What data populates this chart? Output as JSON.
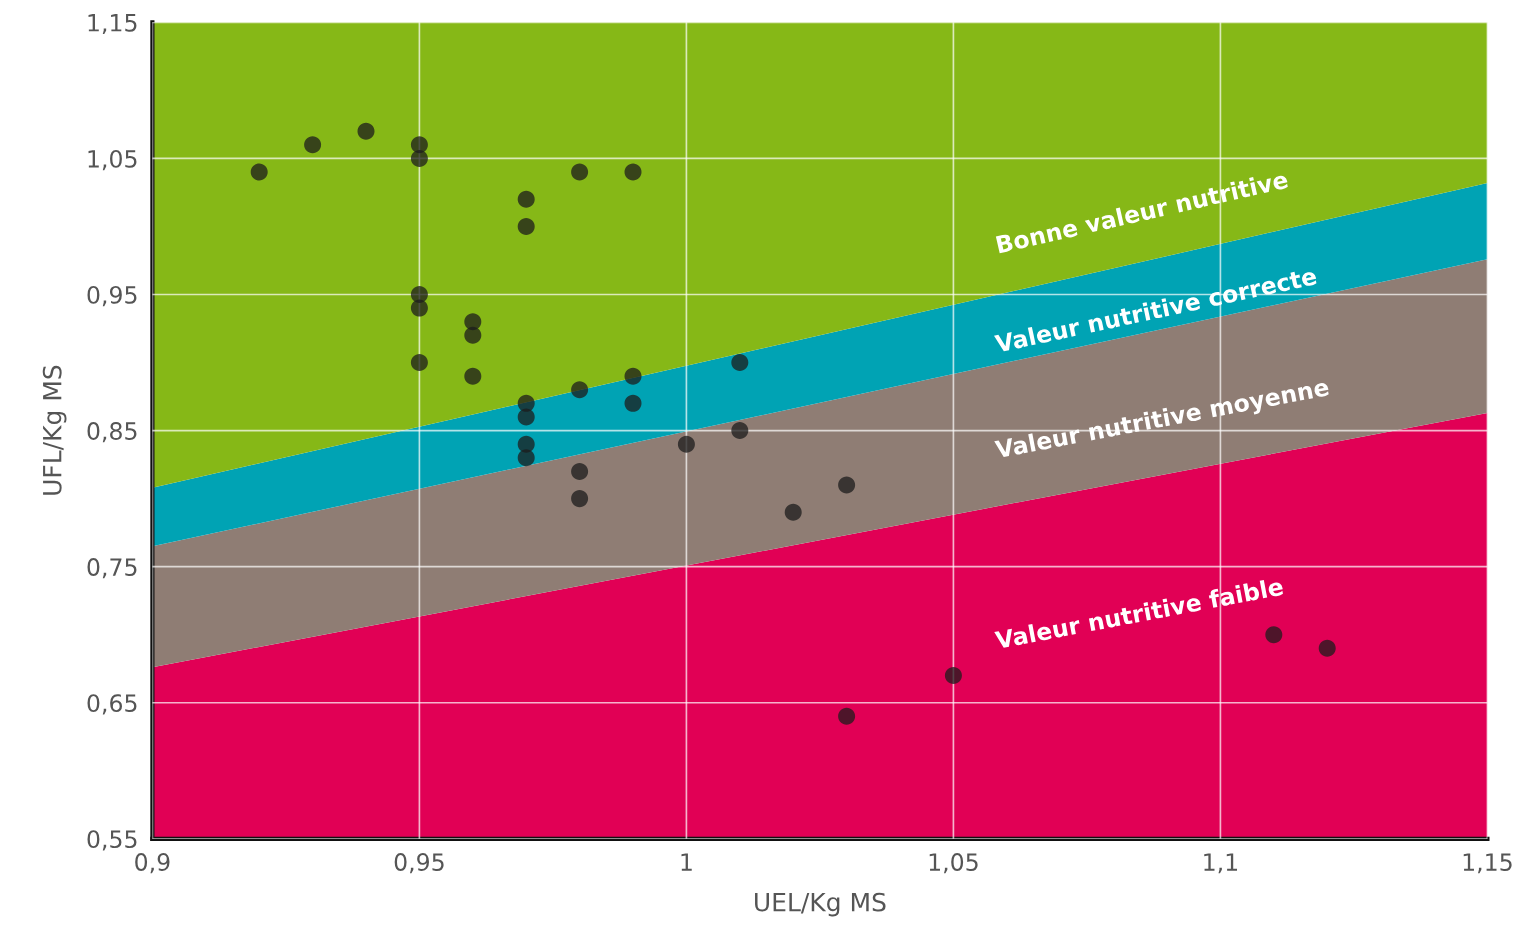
{
  "chart_data": {
    "type": "scatter",
    "xlabel": "UEL/Kg MS",
    "ylabel": "UFL/Kg MS",
    "xlim": [
      0.9,
      1.15
    ],
    "ylim": [
      0.55,
      1.15
    ],
    "xticks": [
      {
        "value": 0.9,
        "label": "0,9"
      },
      {
        "value": 0.95,
        "label": "0,95"
      },
      {
        "value": 1,
        "label": "1"
      },
      {
        "value": 1.05,
        "label": "1,05"
      },
      {
        "value": 1.1,
        "label": "1,1"
      },
      {
        "value": 1.15,
        "label": "1,15"
      }
    ],
    "yticks": [
      {
        "value": 0.55,
        "label": "0,55"
      },
      {
        "value": 0.65,
        "label": "0,65"
      },
      {
        "value": 0.75,
        "label": "0,75"
      },
      {
        "value": 0.85,
        "label": "0,85"
      },
      {
        "value": 0.95,
        "label": "0,95"
      },
      {
        "value": 1.05,
        "label": "1,05"
      },
      {
        "value": 1.15,
        "label": "1,15"
      }
    ],
    "grid": true,
    "series": [
      {
        "type": "area",
        "name": "Valeur nutritive faible",
        "color": "#e10055",
        "x": [
          0.9,
          1.15
        ],
        "values": [
          0.676,
          0.863
        ]
      },
      {
        "type": "area",
        "name": "Valeur nutritive moyenne",
        "color": "#8f7d74",
        "x": [
          0.9,
          1.15
        ],
        "values": [
          0.765,
          0.976
        ]
      },
      {
        "type": "area",
        "name": "Valeur nutritive correcte",
        "color": "#00a3b4",
        "x": [
          0.9,
          1.15
        ],
        "values": [
          0.808,
          1.032
        ]
      },
      {
        "type": "area",
        "name": "Bonne valeur nutritive",
        "color": "#86b817",
        "x": [
          0.9,
          1.15
        ],
        "values": [
          1.15,
          1.15
        ]
      },
      {
        "marker": "circle",
        "color": "#1c1c1c",
        "x": [
          0.92,
          0.93,
          0.94,
          0.95,
          0.95,
          0.97,
          0.97,
          0.98,
          0.99,
          0.95,
          0.95,
          0.95,
          0.96,
          0.96,
          0.96,
          0.97,
          0.97,
          0.97,
          0.97,
          0.98,
          0.98,
          0.98,
          0.99,
          0.99,
          1.0,
          1.01,
          1.01,
          1.02,
          1.03,
          1.03,
          1.05,
          1.11,
          1.12
        ],
        "values": [
          1.04,
          1.06,
          1.07,
          1.06,
          1.05,
          1.02,
          1.0,
          1.04,
          1.04,
          0.95,
          0.94,
          0.9,
          0.93,
          0.92,
          0.89,
          0.87,
          0.86,
          0.84,
          0.83,
          0.88,
          0.82,
          0.8,
          0.89,
          0.87,
          0.84,
          0.9,
          0.85,
          0.79,
          0.81,
          0.64,
          0.67,
          0.7,
          0.69
        ]
      }
    ]
  }
}
